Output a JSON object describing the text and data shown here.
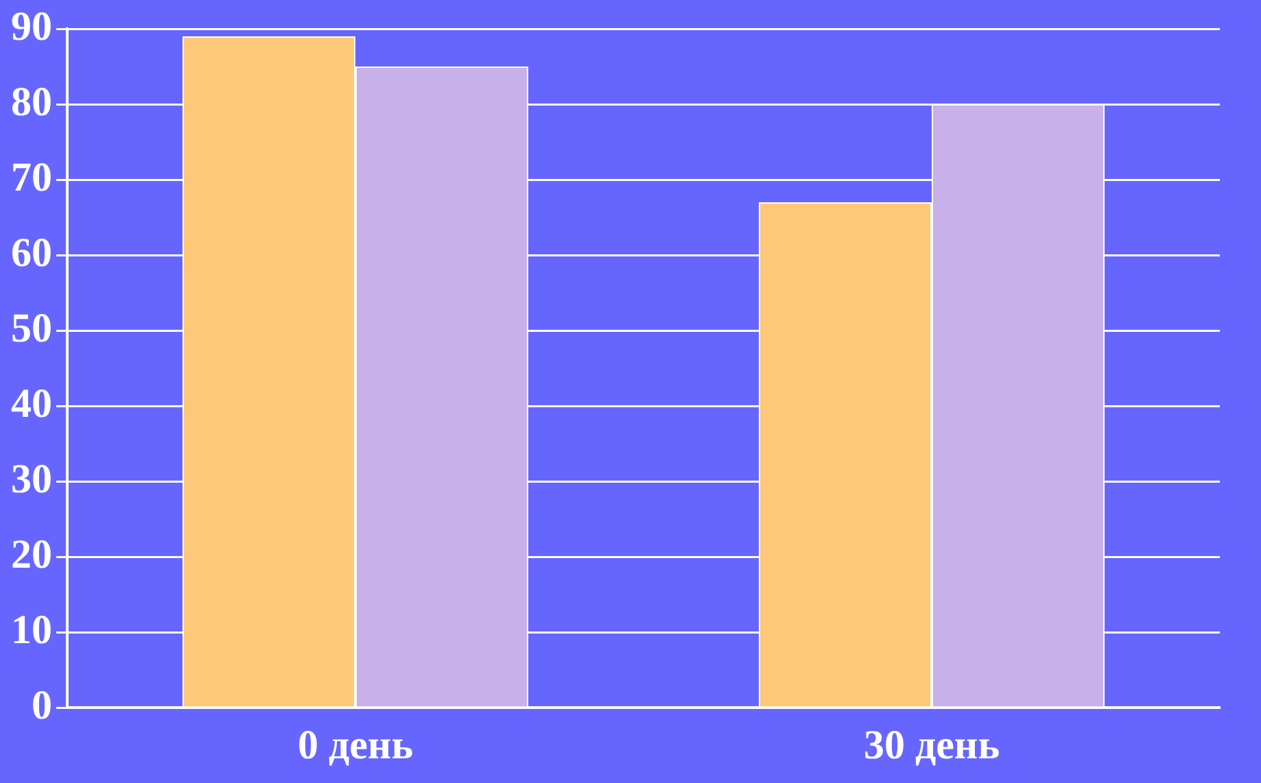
{
  "chart_data": {
    "type": "bar",
    "categories": [
      "0 день",
      "30 день"
    ],
    "series": [
      {
        "color": "#fec878",
        "values": [
          89,
          67
        ]
      },
      {
        "color": "#c8b0e8",
        "values": [
          85,
          80
        ]
      }
    ],
    "ylim": [
      0,
      90
    ],
    "yticks": [
      0,
      10,
      20,
      30,
      40,
      50,
      60,
      70,
      80,
      90
    ],
    "grid": "y",
    "legend": false
  }
}
